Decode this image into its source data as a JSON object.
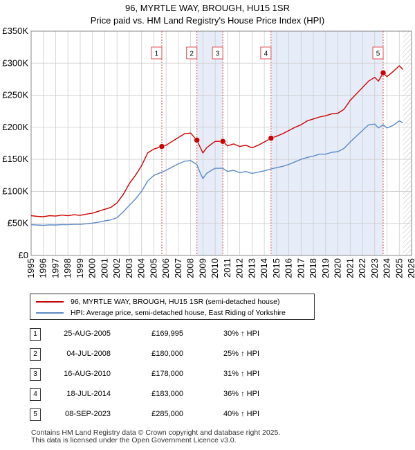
{
  "chart_data": {
    "type": "line",
    "title": "96, MYRTLE WAY, BROUGH, HU15 1SR",
    "subtitle": "Price paid vs. HM Land Registry's House Price Index (HPI)",
    "xlim": [
      1995,
      2026
    ],
    "ylim": [
      0,
      350000
    ],
    "x_ticks": [
      "1995",
      "1996",
      "1997",
      "1998",
      "1999",
      "2000",
      "2001",
      "2002",
      "2003",
      "2004",
      "2005",
      "2006",
      "2007",
      "2008",
      "2009",
      "2010",
      "2011",
      "2012",
      "2013",
      "2014",
      "2015",
      "2016",
      "2017",
      "2018",
      "2019",
      "2020",
      "2021",
      "2022",
      "2023",
      "2024",
      "2025",
      "2026"
    ],
    "y_ticks": [
      {
        "value": 0,
        "label": "£0"
      },
      {
        "value": 50000,
        "label": "£50K"
      },
      {
        "value": 100000,
        "label": "£100K"
      },
      {
        "value": 150000,
        "label": "£150K"
      },
      {
        "value": 200000,
        "label": "£200K"
      },
      {
        "value": 250000,
        "label": "£250K"
      },
      {
        "value": 300000,
        "label": "£300K"
      },
      {
        "value": 350000,
        "label": "£350K"
      }
    ],
    "grid": true,
    "colors": {
      "property": "#cc0000",
      "hpi": "#5b8ac6",
      "shade": "#e6ecf8",
      "vline": "#e05050",
      "future_hatch": "#bbbbbb"
    },
    "series": [
      {
        "name": "96, MYRTLE WAY, BROUGH, HU15 1SR (semi-detached house)",
        "color": "#cc0000",
        "points": [
          [
            1995.0,
            62000
          ],
          [
            1995.5,
            61000
          ],
          [
            1996.0,
            60500
          ],
          [
            1996.5,
            62000
          ],
          [
            1997.0,
            61500
          ],
          [
            1997.5,
            63000
          ],
          [
            1998.0,
            62000
          ],
          [
            1998.5,
            63500
          ],
          [
            1999.0,
            62500
          ],
          [
            1999.5,
            64500
          ],
          [
            2000.0,
            66000
          ],
          [
            2000.5,
            69000
          ],
          [
            2001.0,
            72000
          ],
          [
            2001.5,
            75000
          ],
          [
            2002.0,
            82000
          ],
          [
            2002.5,
            95000
          ],
          [
            2003.0,
            112000
          ],
          [
            2003.5,
            125000
          ],
          [
            2004.0,
            140000
          ],
          [
            2004.5,
            160000
          ],
          [
            2005.0,
            166000
          ],
          [
            2005.65,
            169995
          ],
          [
            2006.0,
            172000
          ],
          [
            2006.5,
            178000
          ],
          [
            2007.0,
            184000
          ],
          [
            2007.5,
            190000
          ],
          [
            2008.0,
            191000
          ],
          [
            2008.5,
            180000
          ],
          [
            2008.8,
            168000
          ],
          [
            2009.0,
            160000
          ],
          [
            2009.3,
            168000
          ],
          [
            2009.7,
            174000
          ],
          [
            2010.0,
            178000
          ],
          [
            2010.62,
            178000
          ],
          [
            2011.0,
            171000
          ],
          [
            2011.5,
            174000
          ],
          [
            2012.0,
            170000
          ],
          [
            2012.5,
            172000
          ],
          [
            2013.0,
            168000
          ],
          [
            2013.5,
            172000
          ],
          [
            2014.0,
            177000
          ],
          [
            2014.55,
            183000
          ],
          [
            2015.0,
            186000
          ],
          [
            2015.5,
            190000
          ],
          [
            2016.0,
            195000
          ],
          [
            2016.5,
            200000
          ],
          [
            2017.0,
            204000
          ],
          [
            2017.5,
            210000
          ],
          [
            2018.0,
            213000
          ],
          [
            2018.5,
            216000
          ],
          [
            2019.0,
            218000
          ],
          [
            2019.5,
            221000
          ],
          [
            2020.0,
            222000
          ],
          [
            2020.5,
            228000
          ],
          [
            2021.0,
            242000
          ],
          [
            2021.5,
            252000
          ],
          [
            2022.0,
            262000
          ],
          [
            2022.5,
            272000
          ],
          [
            2023.0,
            278000
          ],
          [
            2023.3,
            272000
          ],
          [
            2023.69,
            285000
          ],
          [
            2024.0,
            279000
          ],
          [
            2024.5,
            287000
          ],
          [
            2025.0,
            296000
          ],
          [
            2025.3,
            290000
          ]
        ]
      },
      {
        "name": "HPI: Average price, semi-detached house, East Riding of Yorkshire",
        "color": "#5b8ac6",
        "points": [
          [
            1995.0,
            48000
          ],
          [
            1995.5,
            47500
          ],
          [
            1996.0,
            47000
          ],
          [
            1996.5,
            47800
          ],
          [
            1997.0,
            47500
          ],
          [
            1997.5,
            48200
          ],
          [
            1998.0,
            48000
          ],
          [
            1998.5,
            48500
          ],
          [
            1999.0,
            48500
          ],
          [
            1999.5,
            49500
          ],
          [
            2000.0,
            50500
          ],
          [
            2000.5,
            52000
          ],
          [
            2001.0,
            54000
          ],
          [
            2001.5,
            55500
          ],
          [
            2002.0,
            59000
          ],
          [
            2002.5,
            68000
          ],
          [
            2003.0,
            78000
          ],
          [
            2003.5,
            88000
          ],
          [
            2004.0,
            100000
          ],
          [
            2004.5,
            116000
          ],
          [
            2005.0,
            125000
          ],
          [
            2005.65,
            130000
          ],
          [
            2006.0,
            133000
          ],
          [
            2006.5,
            138000
          ],
          [
            2007.0,
            143000
          ],
          [
            2007.5,
            147000
          ],
          [
            2008.0,
            148000
          ],
          [
            2008.5,
            142000
          ],
          [
            2008.8,
            128000
          ],
          [
            2009.0,
            120000
          ],
          [
            2009.3,
            128000
          ],
          [
            2009.7,
            133000
          ],
          [
            2010.0,
            136000
          ],
          [
            2010.62,
            136000
          ],
          [
            2011.0,
            131000
          ],
          [
            2011.5,
            133000
          ],
          [
            2012.0,
            129000
          ],
          [
            2012.5,
            131000
          ],
          [
            2013.0,
            128000
          ],
          [
            2013.5,
            130000
          ],
          [
            2014.0,
            132000
          ],
          [
            2014.55,
            135000
          ],
          [
            2015.0,
            137000
          ],
          [
            2015.5,
            139000
          ],
          [
            2016.0,
            142000
          ],
          [
            2016.5,
            146000
          ],
          [
            2017.0,
            150000
          ],
          [
            2017.5,
            153000
          ],
          [
            2018.0,
            155000
          ],
          [
            2018.5,
            158000
          ],
          [
            2019.0,
            158000
          ],
          [
            2019.5,
            161000
          ],
          [
            2020.0,
            162000
          ],
          [
            2020.5,
            167000
          ],
          [
            2021.0,
            177000
          ],
          [
            2021.5,
            186000
          ],
          [
            2022.0,
            195000
          ],
          [
            2022.5,
            204000
          ],
          [
            2023.0,
            205000
          ],
          [
            2023.3,
            199000
          ],
          [
            2023.69,
            204000
          ],
          [
            2024.0,
            199000
          ],
          [
            2024.5,
            203000
          ],
          [
            2025.0,
            210000
          ],
          [
            2025.3,
            207000
          ]
        ]
      }
    ],
    "sale_markers": [
      {
        "label": "1",
        "x": 2005.65,
        "y": 169995
      },
      {
        "label": "2",
        "x": 2008.51,
        "y": 180000
      },
      {
        "label": "3",
        "x": 2010.62,
        "y": 178000
      },
      {
        "label": "4",
        "x": 2014.55,
        "y": 183000
      },
      {
        "label": "5",
        "x": 2023.69,
        "y": 285000
      }
    ],
    "shaded_ranges": [
      [
        2008.51,
        2010.62
      ],
      [
        2014.55,
        2023.69
      ]
    ],
    "future_from": 2025.3,
    "legend_position": "below"
  },
  "legend": {
    "property_label": "96, MYRTLE WAY, BROUGH, HU15 1SR (semi-detached house)",
    "hpi_label": "HPI: Average price, semi-detached house, East Riding of Yorkshire"
  },
  "sales": [
    {
      "num": "1",
      "date": "25-AUG-2005",
      "price": "£169,995",
      "hpi": "30% ↑ HPI"
    },
    {
      "num": "2",
      "date": "04-JUL-2008",
      "price": "£180,000",
      "hpi": "25% ↑ HPI"
    },
    {
      "num": "3",
      "date": "16-AUG-2010",
      "price": "£178,000",
      "hpi": "31% ↑ HPI"
    },
    {
      "num": "4",
      "date": "18-JUL-2014",
      "price": "£183,000",
      "hpi": "36% ↑ HPI"
    },
    {
      "num": "5",
      "date": "08-SEP-2023",
      "price": "£285,000",
      "hpi": "40% ↑ HPI"
    }
  ],
  "footer": {
    "line1": "Contains HM Land Registry data © Crown copyright and database right 2025.",
    "line2": "This data is licensed under the Open Government Licence v3.0."
  }
}
